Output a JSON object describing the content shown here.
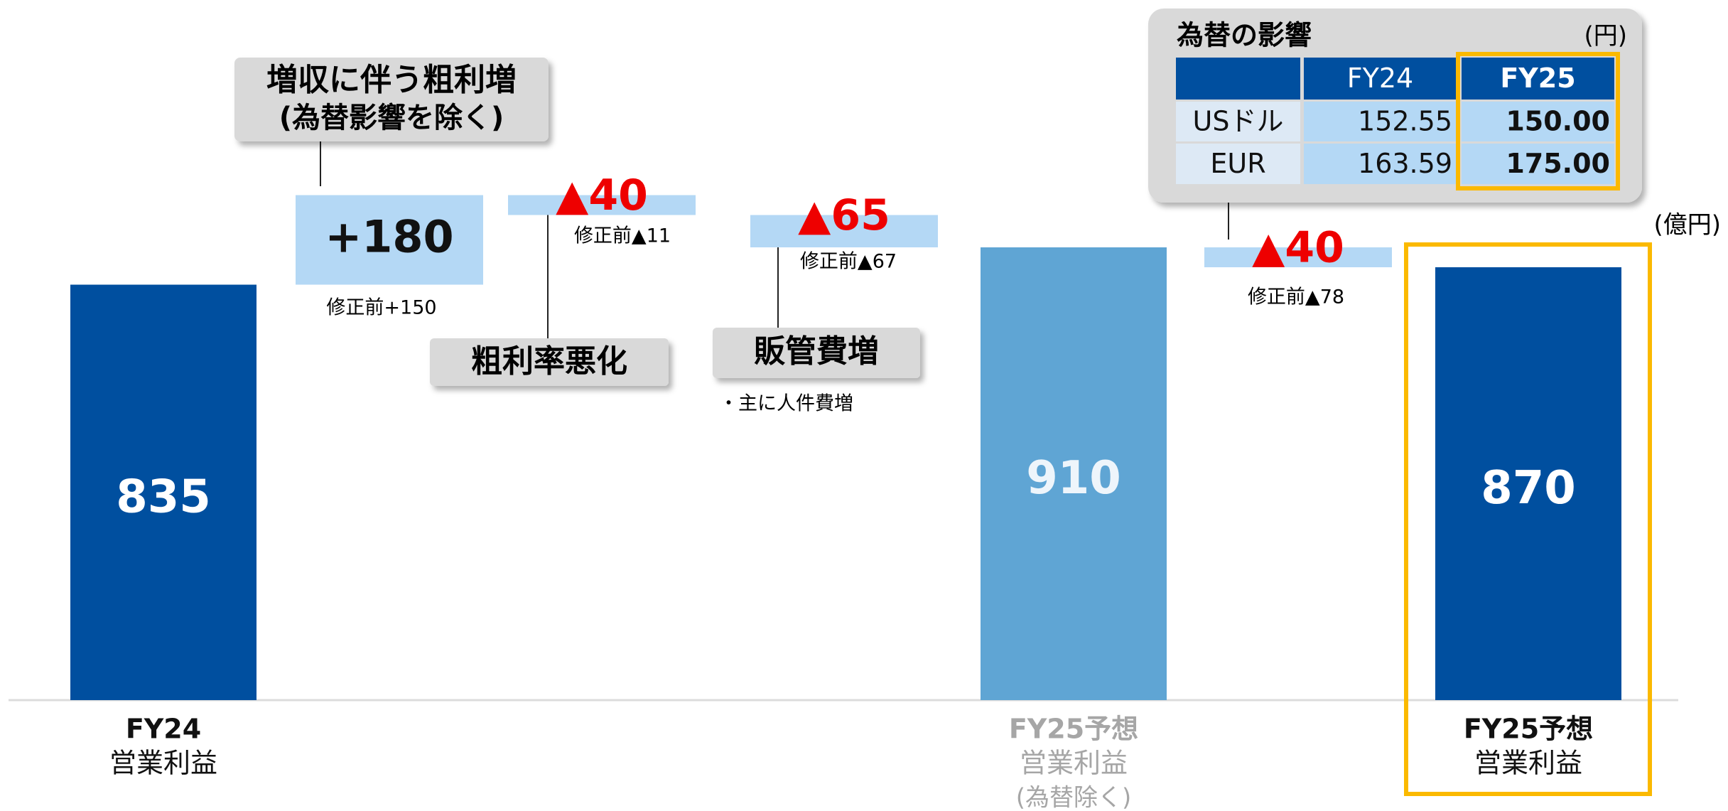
{
  "chart_data": {
    "type": "waterfall",
    "unit": "(億円)",
    "categories": [
      [
        "FY24",
        "営業利益"
      ],
      null,
      null,
      null,
      [
        "FY25予想",
        "営業利益",
        "(為替除く)"
      ],
      null,
      [
        "FY25予想",
        "営業利益"
      ]
    ],
    "values": [
      835,
      180,
      -40,
      -65,
      910,
      -40,
      870
    ],
    "value_labels": [
      "835",
      "+180",
      "▲40",
      "▲65",
      "910",
      "▲40",
      "870"
    ],
    "is_total": [
      true,
      false,
      false,
      false,
      true,
      false,
      true
    ],
    "colors": [
      "#004f9f",
      "#b4d8f5",
      "#b4d8f5",
      "#b4d8f5",
      "#5fa5d4",
      "#b4d8f5",
      "#004f9f"
    ],
    "highlight_color": "#fbb900",
    "notes": [
      "修正前+150",
      "修正前▲11",
      "修正前▲67",
      "修正前▲78"
    ],
    "callouts": [
      [
        "増収に伴う粗利増",
        "(為替影響を除く)"
      ],
      [
        "粗利率悪化"
      ],
      [
        "販管費増"
      ]
    ],
    "callout_detail": "・主に人件費増",
    "fx_table": {
      "title": "為替の影響",
      "unit": "(円)",
      "header": [
        "FY24",
        "FY25"
      ],
      "rows": [
        [
          "USドル",
          "152.55",
          "150.00"
        ],
        [
          "EUR",
          "163.59",
          "175.00"
        ]
      ]
    }
  }
}
